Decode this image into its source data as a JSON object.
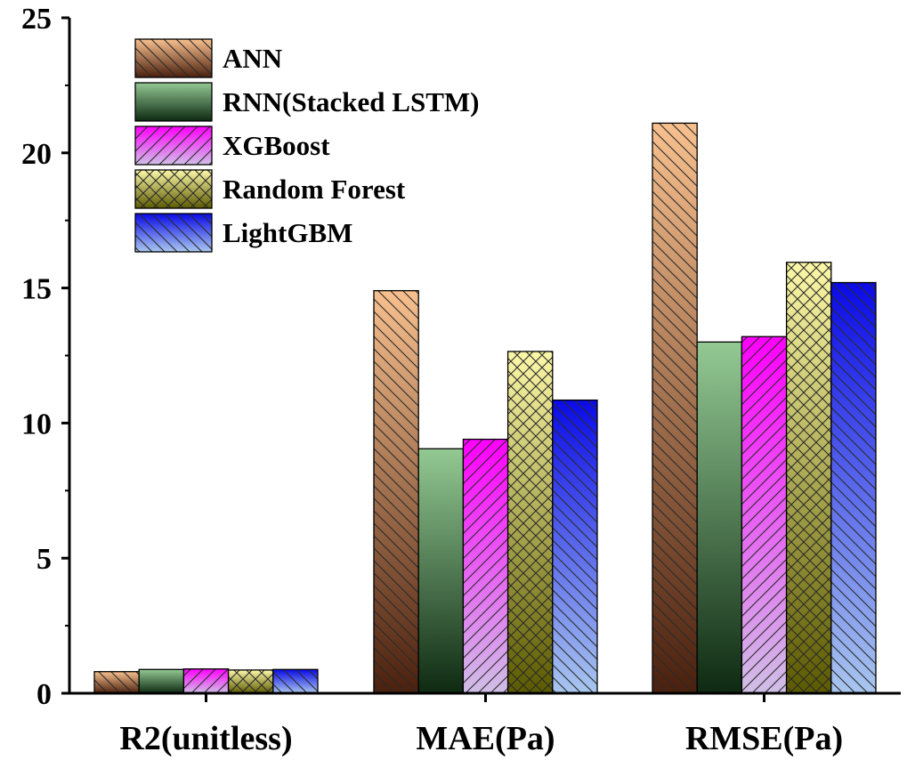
{
  "chart_data": {
    "type": "bar",
    "title": "",
    "xlabel": "",
    "ylabel": "",
    "ylim": [
      0,
      25
    ],
    "yticks": [
      0,
      5,
      10,
      15,
      20,
      25
    ],
    "categories": [
      "R2(unitless)",
      "MAE(Pa)",
      "RMSE(Pa)"
    ],
    "legend_position": "top-left",
    "grid": false,
    "series": [
      {
        "name": "ANN",
        "values": [
          0.8,
          14.9,
          21.1
        ],
        "color_top": "#f8c08e",
        "color_bottom": "#4a200e",
        "hatch": "backslash"
      },
      {
        "name": "RNN(Stacked LSTM)",
        "values": [
          0.88,
          9.05,
          13.0
        ],
        "color_top": "#93c993",
        "color_bottom": "#0e2a12",
        "hatch": "none"
      },
      {
        "name": "XGBoost",
        "values": [
          0.9,
          9.4,
          13.2
        ],
        "color_top": "#ff00ff",
        "color_bottom": "#d0bfe6",
        "hatch": "slash"
      },
      {
        "name": "Random Forest",
        "values": [
          0.86,
          12.65,
          15.95
        ],
        "color_top": "#fcf8a8",
        "color_bottom": "#5c5a00",
        "hatch": "cross"
      },
      {
        "name": "LightGBM",
        "values": [
          0.88,
          10.85,
          15.2
        ],
        "color_top": "#0a0ae8",
        "color_bottom": "#a9c6ee",
        "hatch": "backslash"
      }
    ]
  }
}
